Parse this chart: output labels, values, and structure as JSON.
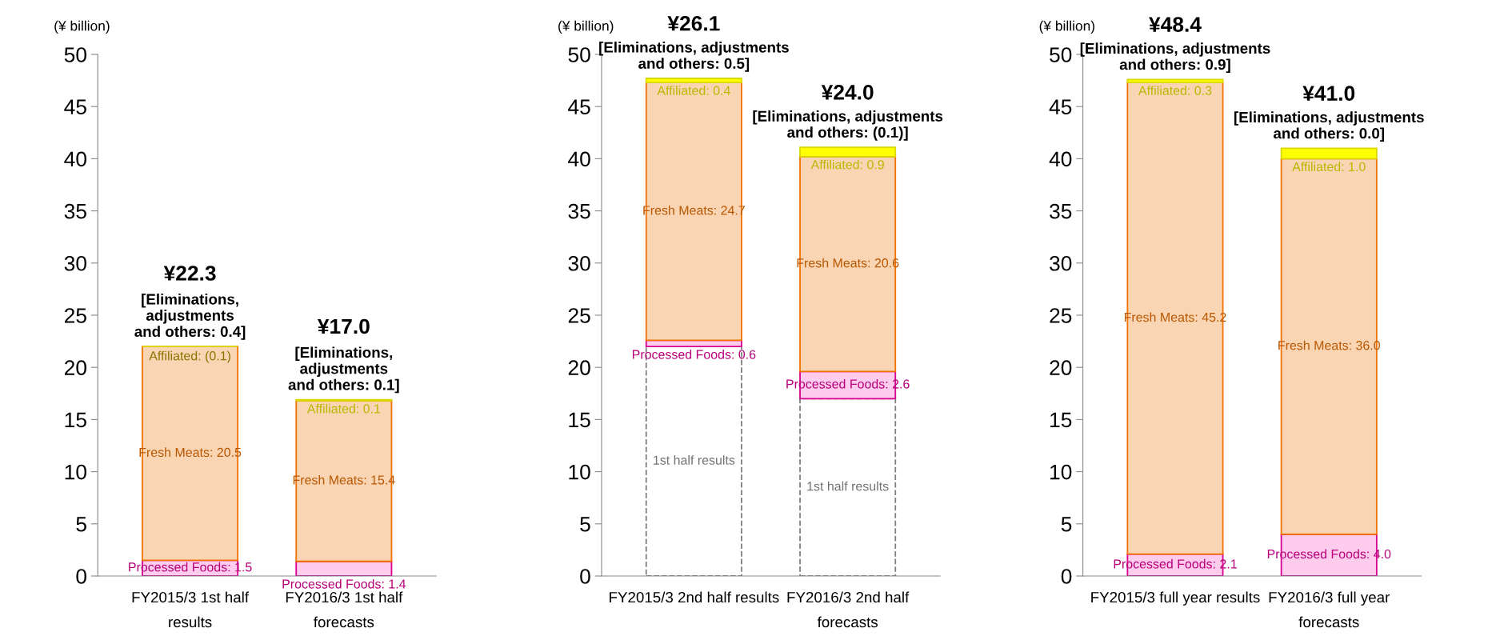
{
  "chart_data": [
    {
      "type": "bar",
      "stacked": true,
      "ylabel": "(¥ billion)",
      "ylim": [
        0,
        50
      ],
      "yticks": [
        0,
        5,
        10,
        15,
        20,
        25,
        30,
        35,
        40,
        45,
        50
      ],
      "categories": [
        "FY2015/3 1st half\nresults",
        "FY2016/3 1st half\nforecasts"
      ],
      "series": [
        {
          "color": "#ffccee",
          "values": [
            1.5,
            1.4
          ],
          "value_labels": [
            "Processed Foods: 1.5",
            "Processed Foods: 1.4"
          ]
        },
        {
          "color": "#fad5b4",
          "values": [
            20.5,
            15.4
          ],
          "value_labels": [
            "Fresh Meats: 20.5",
            "Fresh Meats: 15.4"
          ]
        },
        {
          "color": "#ffff00",
          "values": [
            null,
            0.1
          ],
          "value_labels": [
            null,
            "Affiliated: 0.1"
          ]
        }
      ],
      "annotations": [
        {
          "text": "Affiliated: (0.1)",
          "x": "FY2015/3 1st half\nresults",
          "y": 22.0
        },
        {
          "text": "¥22.3\n[Eliminations,\nadjustments\nand others: 0.4]",
          "x": "FY2015/3 1st half\nresults",
          "y": 22.0
        },
        {
          "text": "¥17.0\n[Eliminations,\nadjustments\nand others: 0.1]",
          "x": "FY2016/3 1st half\nforecasts",
          "y": 16.9
        }
      ]
    },
    {
      "type": "bar",
      "stacked": true,
      "ylabel": "(¥ billion)",
      "ylim": [
        0,
        50
      ],
      "yticks": [
        0,
        5,
        10,
        15,
        20,
        25,
        30,
        35,
        40,
        45,
        50
      ],
      "categories": [
        "FY2015/3 2nd half results",
        "FY2016/3 2nd half\nforecasts"
      ],
      "series": [
        {
          "name": "1st half results",
          "color": "#ffffff",
          "line_style": "dashed",
          "values": [
            22.0,
            17.0
          ]
        },
        {
          "color": "#ffccee",
          "values": [
            0.6,
            2.6
          ],
          "value_labels": [
            "Processed Foods: 0.6",
            "Processed Foods: 2.6"
          ]
        },
        {
          "color": "#fad5b4",
          "values": [
            24.7,
            20.6
          ],
          "value_labels": [
            "Fresh Meats: 24.7",
            "Fresh Meats: 20.6"
          ]
        },
        {
          "color": "#ffff00",
          "values": [
            0.4,
            0.9
          ],
          "value_labels": [
            "Affiliated: 0.4",
            "Affiliated: 0.9"
          ]
        }
      ],
      "annotations": [
        {
          "text": "¥26.1\n[Eliminations, adjustments\nand others: 0.5]",
          "x": "FY2015/3 2nd half results",
          "y": 47.7
        },
        {
          "text": "¥24.0\n[Eliminations, adjustments\nand others: (0.1)]",
          "x": "FY2016/3 2nd half\nforecasts",
          "y": 41.1
        }
      ]
    },
    {
      "type": "bar",
      "stacked": true,
      "ylabel": "(¥ billion)",
      "ylim": [
        0,
        50
      ],
      "yticks": [
        0,
        5,
        10,
        15,
        20,
        25,
        30,
        35,
        40,
        45,
        50
      ],
      "categories": [
        "FY2015/3 full year results",
        "FY2016/3 full year\nforecasts"
      ],
      "series": [
        {
          "color": "#ffccee",
          "values": [
            2.1,
            4.0
          ],
          "value_labels": [
            "Processed Foods: 2.1",
            "Processed Foods: 4.0"
          ]
        },
        {
          "color": "#fad5b4",
          "values": [
            45.2,
            36.0
          ],
          "value_labels": [
            "Fresh Meats: 45.2",
            "Fresh Meats: 36.0"
          ]
        },
        {
          "color": "#ffff00",
          "values": [
            0.3,
            1.0
          ],
          "value_labels": [
            "Affiliated: 0.3",
            "Affiliated: 1.0"
          ]
        }
      ],
      "annotations": [
        {
          "text": "¥48.4\n[Eliminations, adjustments\nand others: 0.9]",
          "x": "FY2015/3 full year results",
          "y": 47.6
        },
        {
          "text": "¥41.0\n[Eliminations, adjustments\nand others: 0.0]",
          "x": "FY2016/3 full year\nforecasts",
          "y": 41.0
        }
      ]
    }
  ]
}
